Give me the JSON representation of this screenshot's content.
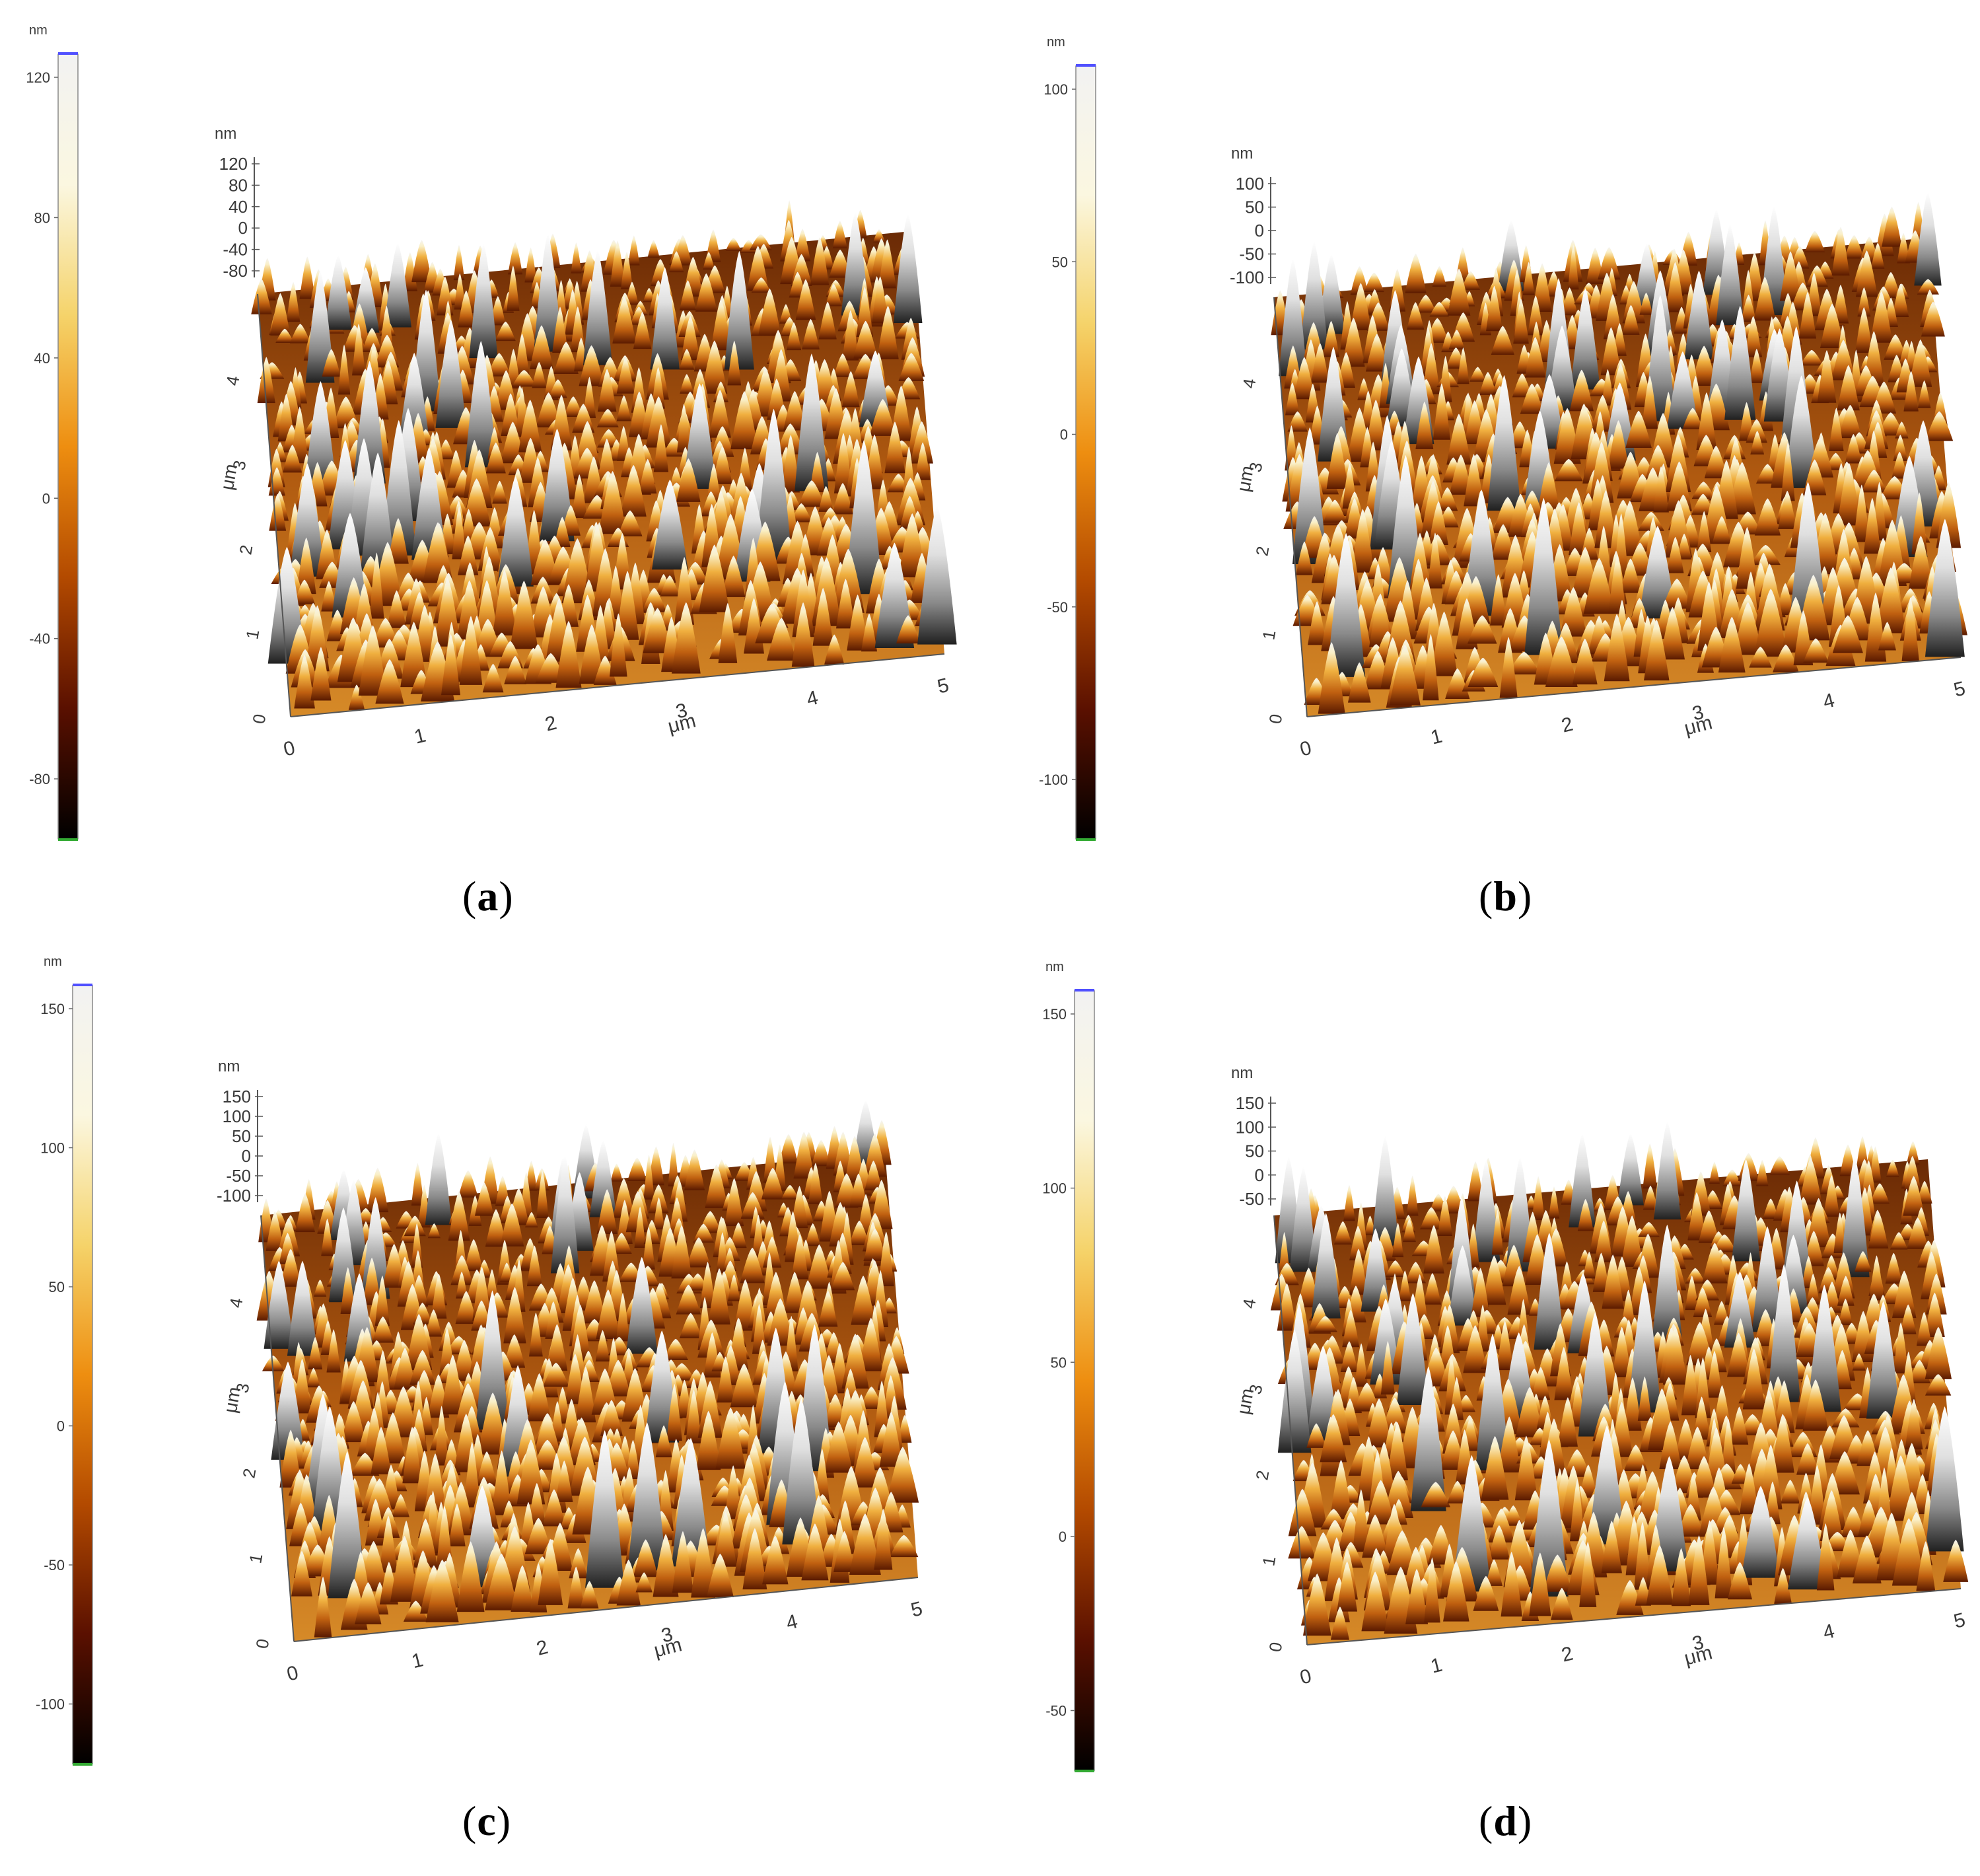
{
  "colors": {
    "colormap": [
      "#000000",
      "#5a1000",
      "#b34a00",
      "#ee8e10",
      "#f5d36a",
      "#fbf7e0",
      "#f2f2f2"
    ],
    "scale_top_marker": "#5050ff",
    "scale_zero_marker": "#ff5500",
    "scale_bottom_marker": "#33aa33"
  },
  "panels": [
    {
      "label": "a",
      "colorbar": {
        "unit": "nm",
        "ticks": [
          "120",
          "80",
          "40",
          "0",
          "-40",
          "-80"
        ]
      },
      "z_axis": {
        "unit": "nm",
        "ticks": [
          "120",
          "80",
          "40",
          "0",
          "-40",
          "-80"
        ]
      },
      "y_axis": {
        "unit": "μm",
        "ticks": [
          "0",
          "1",
          "2",
          "3",
          "4"
        ]
      },
      "x_axis": {
        "unit": "μm",
        "ticks": [
          "0",
          "1",
          "2",
          "3",
          "4",
          "5"
        ]
      }
    },
    {
      "label": "b",
      "colorbar": {
        "unit": "nm",
        "ticks": [
          "100",
          "50",
          "0",
          "-50",
          "-100"
        ]
      },
      "z_axis": {
        "unit": "nm",
        "ticks": [
          "100",
          "50",
          "0",
          "-50",
          "-100"
        ]
      },
      "y_axis": {
        "unit": "μm",
        "ticks": [
          "0",
          "1",
          "2",
          "3",
          "4"
        ]
      },
      "x_axis": {
        "unit": "μm",
        "ticks": [
          "0",
          "1",
          "2",
          "3",
          "4",
          "5"
        ]
      }
    },
    {
      "label": "c",
      "colorbar": {
        "unit": "nm",
        "ticks": [
          "150",
          "100",
          "50",
          "0",
          "-50",
          "-100"
        ]
      },
      "z_axis": {
        "unit": "nm",
        "ticks": [
          "150",
          "100",
          "50",
          "0",
          "-50",
          "-100"
        ]
      },
      "y_axis": {
        "unit": "μm",
        "ticks": [
          "0",
          "1",
          "2",
          "3",
          "4"
        ]
      },
      "x_axis": {
        "unit": "μm",
        "ticks": [
          "0",
          "1",
          "2",
          "3",
          "4",
          "5"
        ]
      }
    },
    {
      "label": "d",
      "colorbar": {
        "unit": "nm",
        "ticks": [
          "150",
          "100",
          "50",
          "0",
          "-50"
        ]
      },
      "z_axis": {
        "unit": "nm",
        "ticks": [
          "150",
          "100",
          "50",
          "0",
          "-50"
        ]
      },
      "y_axis": {
        "unit": "μm",
        "ticks": [
          "0",
          "1",
          "2",
          "3",
          "4"
        ]
      },
      "x_axis": {
        "unit": "μm",
        "ticks": [
          "0",
          "1",
          "2",
          "3",
          "4",
          "5"
        ]
      }
    }
  ]
}
